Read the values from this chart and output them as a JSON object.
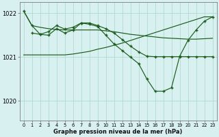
{
  "xlabel": "Graphe pression niveau de la mer (hPa)",
  "bg_color": "#d8f0f0",
  "line_color": "#1a5c1a",
  "grid_color": "#a8d8c8",
  "xlim": [
    -0.5,
    23.5
  ],
  "ylim": [
    1019.55,
    1022.25
  ],
  "yticks": [
    1020,
    1021,
    1022
  ],
  "ytick_labels": [
    "1020",
    "1021",
    "1022"
  ],
  "xticks": [
    0,
    1,
    2,
    3,
    4,
    5,
    6,
    7,
    8,
    9,
    10,
    11,
    12,
    13,
    14,
    15,
    16,
    17,
    18,
    19,
    20,
    21,
    22,
    23
  ],
  "curve1_x": [
    0,
    1,
    2,
    3,
    4,
    5,
    6,
    7,
    8,
    9,
    10,
    11,
    12,
    13,
    14,
    15,
    16,
    17,
    18,
    19,
    20,
    21,
    22,
    23
  ],
  "curve1_y": [
    1022.05,
    1021.72,
    1021.68,
    1021.65,
    1021.63,
    1021.62,
    1021.62,
    1021.62,
    1021.62,
    1021.62,
    1021.6,
    1021.58,
    1021.55,
    1021.52,
    1021.5,
    1021.48,
    1021.46,
    1021.44,
    1021.43,
    1021.42,
    1021.41,
    1021.41,
    1021.42,
    1021.43
  ],
  "curve1_markers": false,
  "curve2_x": [
    0,
    1,
    2,
    3,
    4,
    5,
    6,
    7,
    8,
    9,
    10,
    11,
    12,
    13,
    14,
    15,
    16,
    17,
    18,
    19,
    20,
    21,
    22,
    23
  ],
  "curve2_y": [
    1021.05,
    1021.05,
    1021.05,
    1021.05,
    1021.05,
    1021.05,
    1021.07,
    1021.1,
    1021.13,
    1021.18,
    1021.22,
    1021.27,
    1021.32,
    1021.38,
    1021.44,
    1021.5,
    1021.56,
    1021.62,
    1021.68,
    1021.74,
    1021.8,
    1021.86,
    1021.92,
    1021.92
  ],
  "curve2_markers": false,
  "curve3_x": [
    1,
    2,
    3,
    4,
    5,
    6,
    7,
    8,
    9,
    10,
    11,
    12,
    13,
    14,
    15,
    16,
    17,
    18,
    19,
    20,
    21,
    22,
    23
  ],
  "curve3_y": [
    1021.55,
    1021.52,
    1021.58,
    1021.72,
    1021.64,
    1021.68,
    1021.78,
    1021.78,
    1021.72,
    1021.65,
    1021.55,
    1021.4,
    1021.25,
    1021.12,
    1021.02,
    1021.01,
    1021.01,
    1021.01,
    1021.01,
    1021.01,
    1021.01,
    1021.01,
    1021.01
  ],
  "curve3_markers": true,
  "curve3_marker_x": [
    1,
    3,
    5,
    7,
    8,
    10,
    12,
    14,
    16,
    18,
    20,
    22
  ],
  "curve4_x": [
    0,
    1,
    2,
    3,
    4,
    5,
    6,
    7,
    8,
    9,
    10,
    11,
    12,
    13,
    14,
    15,
    16,
    17,
    18,
    19,
    20,
    21,
    22,
    23
  ],
  "curve4_y": [
    1022.05,
    1021.72,
    1021.52,
    1021.5,
    1021.65,
    1021.55,
    1021.62,
    1021.78,
    1021.75,
    1021.7,
    1021.5,
    1021.3,
    1021.15,
    1021.0,
    1020.85,
    1020.5,
    1020.22,
    1020.22,
    1020.3,
    1021.02,
    1021.38,
    1021.62,
    1021.82,
    1021.92
  ],
  "curve4_markers": true,
  "curve4_marker_x": [
    0,
    1,
    2,
    3,
    4,
    5,
    6,
    7,
    8,
    9,
    10,
    11,
    12,
    13,
    14,
    15,
    16,
    17,
    18,
    19,
    20,
    21,
    22,
    23
  ]
}
